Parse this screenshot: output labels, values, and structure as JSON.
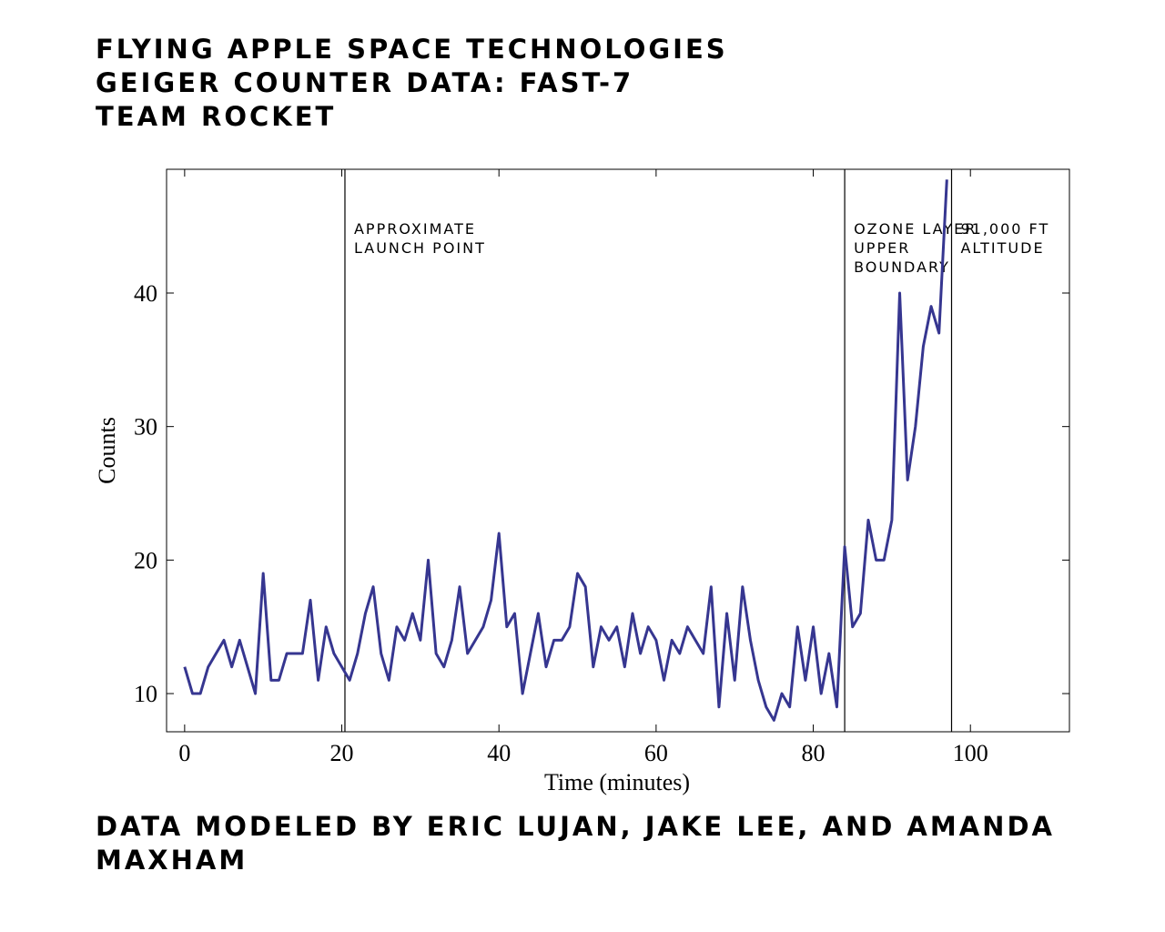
{
  "chart_data": {
    "type": "line",
    "title_lines": [
      "FLYING APPLE SPACE TECHNOLOGIES",
      "GEIGER COUNTER DATA: FAST-7",
      "TEAM ROCKET"
    ],
    "footer": "DATA MODELED BY ERIC LUJAN, JAKE LEE, AND AMANDA MAXHAM",
    "xlabel": "Time (minutes)",
    "ylabel": "Counts",
    "xlim": [
      -2.3,
      112.6
    ],
    "ylim": [
      7.14,
      49.27
    ],
    "xticks": [
      0,
      20,
      40,
      60,
      80,
      100
    ],
    "yticks": [
      10,
      20,
      30,
      40
    ],
    "x": [
      0,
      1,
      2,
      3,
      4,
      5,
      6,
      7,
      8,
      9,
      10,
      11,
      12,
      13,
      14,
      15,
      16,
      17,
      18,
      19,
      20,
      21,
      22,
      23,
      24,
      25,
      26,
      27,
      28,
      29,
      30,
      31,
      32,
      33,
      34,
      35,
      36,
      37,
      38,
      39,
      40,
      41,
      42,
      43,
      44,
      45,
      46,
      47,
      48,
      49,
      50,
      51,
      52,
      53,
      54,
      55,
      56,
      57,
      58,
      59,
      60,
      61,
      62,
      63,
      64,
      65,
      66,
      67,
      68,
      69,
      70,
      71,
      72,
      73,
      74,
      75,
      76,
      77,
      78,
      79,
      80,
      81,
      82,
      83,
      84,
      85,
      86,
      87,
      88,
      89,
      90,
      91,
      92,
      93,
      94,
      95,
      96,
      97
    ],
    "series": [
      {
        "color": "#363690",
        "values": [
          12,
          10,
          10,
          12,
          13,
          14,
          12,
          14,
          12,
          10,
          19,
          11,
          11,
          13,
          13,
          13,
          17,
          11,
          15,
          13,
          12,
          11,
          13,
          16,
          18,
          13,
          11,
          15,
          14,
          16,
          14,
          20,
          13,
          12,
          14,
          18,
          13,
          14,
          15,
          17,
          22,
          15,
          16,
          10,
          13,
          16,
          12,
          14,
          14,
          15,
          19,
          18,
          12,
          15,
          14,
          15,
          12,
          16,
          13,
          15,
          14,
          11,
          14,
          13,
          15,
          14,
          13,
          18,
          9,
          16,
          11,
          18,
          14,
          11,
          9,
          8,
          10,
          9,
          15,
          11,
          15,
          10,
          13,
          9,
          21,
          15,
          16,
          23,
          20,
          20,
          23,
          40,
          26,
          30,
          36,
          39,
          37,
          48.5
        ]
      }
    ],
    "annotations": [
      {
        "x": 20.4,
        "lines": [
          "APPROXIMATE",
          "LAUNCH POINT"
        ]
      },
      {
        "x": 84.0,
        "lines": [
          "OZONE LAYER",
          "UPPER",
          "BOUNDARY"
        ]
      },
      {
        "x": 97.6,
        "lines": [
          "91,000 FT",
          "ALTITUDE"
        ]
      }
    ]
  }
}
